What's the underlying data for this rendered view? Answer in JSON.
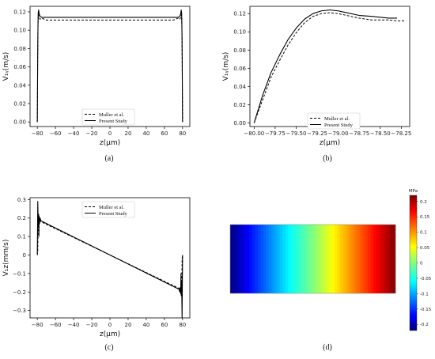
{
  "chart_data": [
    {
      "type": "line",
      "panel_label": "(a)",
      "xlabel": "z(μm)",
      "ylabel": "V₁ᵧ(m/s)",
      "xlim": [
        -88,
        88
      ],
      "ylim": [
        -0.005,
        0.126
      ],
      "xticks": [
        "-80",
        "-60",
        "-40",
        "-20",
        "0",
        "20",
        "40",
        "60",
        "80"
      ],
      "yticks": [
        "0.00",
        "0.02",
        "0.04",
        "0.06",
        "0.08",
        "0.10",
        "0.12"
      ],
      "legend": "bottom-center",
      "series": [
        {
          "name": "Muller et al.",
          "dash": "dashed",
          "x": [
            -80,
            -79.8,
            -79.6,
            -79.4,
            -79.2,
            -79,
            -78.5,
            -78,
            -77,
            -75,
            -70,
            -60,
            -40,
            0,
            40,
            60,
            70,
            75,
            77,
            78,
            78.5,
            79,
            79.2,
            79.4,
            79.6,
            79.8,
            80
          ],
          "y": [
            0.0,
            0.03,
            0.065,
            0.09,
            0.105,
            0.113,
            0.117,
            0.114,
            0.112,
            0.113,
            0.111,
            0.111,
            0.111,
            0.111,
            0.111,
            0.111,
            0.111,
            0.113,
            0.112,
            0.114,
            0.117,
            0.113,
            0.105,
            0.09,
            0.065,
            0.03,
            0.0
          ]
        },
        {
          "name": "Present Study",
          "dash": "solid",
          "x": [
            -80,
            -79.8,
            -79.6,
            -79.4,
            -79.2,
            -79,
            -78.5,
            -78,
            -77,
            -75,
            -70,
            -60,
            -40,
            0,
            40,
            60,
            70,
            75,
            77,
            78,
            78.5,
            79,
            79.2,
            79.4,
            79.6,
            79.8,
            80
          ],
          "y": [
            0.0,
            0.035,
            0.07,
            0.095,
            0.11,
            0.119,
            0.122,
            0.118,
            0.115,
            0.114,
            0.114,
            0.114,
            0.114,
            0.114,
            0.114,
            0.114,
            0.114,
            0.114,
            0.115,
            0.118,
            0.122,
            0.119,
            0.11,
            0.095,
            0.07,
            0.035,
            0.0
          ]
        }
      ]
    },
    {
      "type": "line",
      "panel_label": "(b)",
      "xlabel": "z(μm)",
      "ylabel": "V₁ᵧ(m/s)",
      "xlim": [
        -80.05,
        -78.15
      ],
      "ylim": [
        -0.004,
        0.128
      ],
      "xticks": [
        "-80.00",
        "-79.75",
        "-79.50",
        "-79.25",
        "-79.00",
        "-78.75",
        "-78.50",
        "-78.25"
      ],
      "yticks": [
        "0.00",
        "0.02",
        "0.04",
        "0.06",
        "0.08",
        "0.10",
        "0.12"
      ],
      "legend": "lower-right",
      "series": [
        {
          "name": "Muller et al.",
          "dash": "dashed",
          "x": [
            -80.0,
            -79.9,
            -79.8,
            -79.7,
            -79.6,
            -79.5,
            -79.4,
            -79.3,
            -79.2,
            -79.1,
            -79.0,
            -78.9,
            -78.75,
            -78.6,
            -78.5,
            -78.4,
            -78.3,
            -78.2
          ],
          "y": [
            0.0,
            0.025,
            0.05,
            0.068,
            0.085,
            0.099,
            0.11,
            0.117,
            0.12,
            0.121,
            0.12,
            0.118,
            0.115,
            0.113,
            0.113,
            0.113,
            0.112,
            0.112
          ]
        },
        {
          "name": "Present Study",
          "dash": "solid",
          "x": [
            -80.0,
            -79.9,
            -79.8,
            -79.7,
            -79.6,
            -79.5,
            -79.4,
            -79.3,
            -79.2,
            -79.1,
            -79.0,
            -78.9,
            -78.75,
            -78.6,
            -78.5,
            -78.4,
            -78.3
          ],
          "y": [
            0.0,
            0.03,
            0.055,
            0.074,
            0.091,
            0.104,
            0.114,
            0.12,
            0.123,
            0.124,
            0.123,
            0.121,
            0.118,
            0.117,
            0.116,
            0.115,
            0.115
          ]
        }
      ]
    },
    {
      "type": "line",
      "panel_label": "(c)",
      "xlabel": "z(μm)",
      "ylabel": "V₁z(mm/s)",
      "xlim": [
        -88,
        88
      ],
      "ylim": [
        -0.34,
        0.31
      ],
      "xticks": [
        "-80",
        "-60",
        "-40",
        "-20",
        "0",
        "20",
        "40",
        "60",
        "80"
      ],
      "yticks": [
        "0.3",
        "0.2",
        "0.1",
        "0",
        "-0.1",
        "-0.2",
        "-0.3"
      ],
      "legend": "top-center",
      "series": [
        {
          "name": "Muller et al.",
          "dash": "dashed",
          "x": [
            -80,
            -79.5,
            -79,
            -78.6,
            -78.3,
            -78,
            -77.5,
            -77,
            -76,
            76,
            77,
            77.5,
            78,
            78.3,
            78.6,
            79,
            79.5,
            80
          ],
          "y": [
            0.0,
            0.02,
            0.2,
            0.22,
            0.12,
            0.2,
            0.17,
            0.19,
            0.18,
            -0.18,
            -0.19,
            -0.17,
            -0.2,
            -0.12,
            -0.22,
            -0.2,
            -0.02,
            0.0
          ]
        },
        {
          "name": "Present Study",
          "dash": "solid",
          "x": [
            -80,
            -79.5,
            -79,
            -78.6,
            -78.3,
            -78,
            -77.5,
            -77,
            -76,
            76,
            77,
            77.5,
            78,
            78.3,
            78.6,
            79,
            79.5,
            80
          ],
          "y": [
            0.0,
            0.29,
            0.15,
            0.22,
            0.1,
            0.21,
            0.18,
            0.2,
            0.185,
            -0.185,
            -0.2,
            -0.18,
            -0.21,
            -0.1,
            -0.22,
            -0.15,
            -0.34,
            0.0
          ]
        }
      ]
    },
    {
      "type": "heatmap",
      "panel_label": "(d)",
      "colorbar_title": "MPa",
      "colorbar_ticks": [
        "0.2",
        "0.15",
        "0.1",
        "0.05",
        "0",
        "-0.05",
        "-0.1",
        "-0.15",
        "-0.2"
      ],
      "range": [
        -0.22,
        0.22
      ],
      "profile": "linear",
      "columns": 60
    }
  ]
}
